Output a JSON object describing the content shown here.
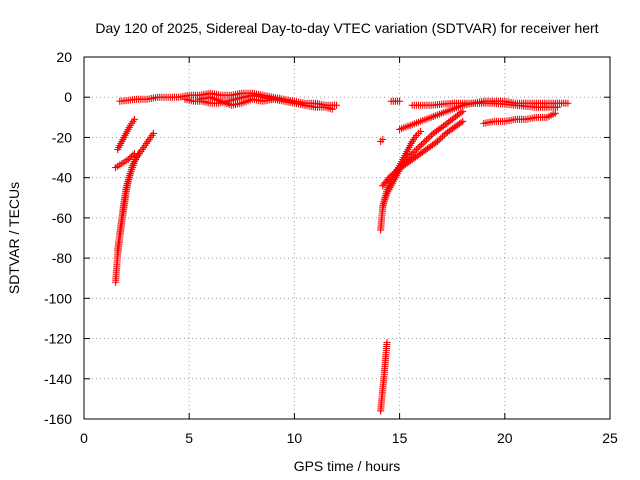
{
  "chart_data": {
    "type": "scatter",
    "title": "Day 120 of 2025, Sidereal Day-to-day VTEC variation (SDTVAR) for receiver hert",
    "xlabel": "GPS time / hours",
    "ylabel": "SDTVAR / TECUs",
    "xlim": [
      0,
      25
    ],
    "ylim": [
      -160,
      20
    ],
    "x_ticks": [
      "0",
      "5",
      "10",
      "15",
      "20",
      "25"
    ],
    "y_ticks": [
      "20",
      "0",
      "-20",
      "-40",
      "-60",
      "-80",
      "-100",
      "-120",
      "-140",
      "-160"
    ],
    "x_tick_values": [
      0,
      5,
      10,
      15,
      20,
      25
    ],
    "y_tick_values": [
      20,
      0,
      -20,
      -40,
      -60,
      -80,
      -100,
      -120,
      -140,
      -160
    ],
    "grid": true,
    "marker": "+",
    "color": "#ff0000",
    "series": [
      {
        "segments": [
          [
            [
              1.6,
              -26
            ],
            [
              1.8,
              -22
            ],
            [
              2.0,
              -18
            ],
            [
              2.2,
              -14
            ],
            [
              2.4,
              -11
            ]
          ],
          [
            [
              1.5,
              -35
            ],
            [
              1.8,
              -33
            ],
            [
              2.1,
              -31
            ],
            [
              2.4,
              -28
            ]
          ],
          [
            [
              1.5,
              -92
            ],
            [
              1.55,
              -85
            ],
            [
              1.6,
              -78
            ],
            [
              1.7,
              -70
            ],
            [
              1.8,
              -62
            ],
            [
              1.9,
              -55
            ],
            [
              2.0,
              -48
            ],
            [
              2.1,
              -42
            ],
            [
              2.2,
              -38
            ],
            [
              2.3,
              -34
            ],
            [
              2.5,
              -30
            ],
            [
              2.7,
              -27
            ],
            [
              2.9,
              -24
            ],
            [
              3.1,
              -21
            ],
            [
              3.3,
              -18
            ]
          ],
          [
            [
              1.6,
              -76
            ],
            [
              1.7,
              -68
            ],
            [
              1.8,
              -60
            ],
            [
              1.9,
              -52
            ],
            [
              2.0,
              -45
            ],
            [
              2.2,
              -38
            ],
            [
              2.4,
              -32
            ],
            [
              2.6,
              -28
            ]
          ],
          [
            [
              1.7,
              -2
            ],
            [
              2.5,
              -1
            ],
            [
              3.0,
              -1
            ],
            [
              3.5,
              0
            ],
            [
              4.0,
              0
            ],
            [
              4.5,
              0
            ],
            [
              5.0,
              1
            ],
            [
              5.5,
              1
            ],
            [
              6.0,
              2
            ],
            [
              6.5,
              1
            ],
            [
              7.0,
              1
            ],
            [
              7.5,
              2
            ],
            [
              8.0,
              2
            ],
            [
              8.5,
              1
            ],
            [
              9.0,
              0
            ],
            [
              9.5,
              -1
            ],
            [
              10.0,
              -2
            ],
            [
              10.5,
              -3
            ],
            [
              11.0,
              -3
            ],
            [
              11.5,
              -4
            ],
            [
              12.0,
              -4
            ]
          ],
          [
            [
              4.8,
              -1
            ],
            [
              5.2,
              -2
            ],
            [
              5.6,
              -2
            ],
            [
              6.0,
              -3
            ],
            [
              6.4,
              -3
            ],
            [
              6.8,
              -2
            ],
            [
              7.2,
              -1
            ],
            [
              7.6,
              0
            ],
            [
              8.0,
              1
            ],
            [
              8.5,
              0
            ],
            [
              9.0,
              -1
            ],
            [
              9.5,
              -2
            ],
            [
              10.0,
              -3
            ],
            [
              10.5,
              -4
            ],
            [
              11.0,
              -5
            ],
            [
              11.5,
              -5
            ],
            [
              11.8,
              -6
            ]
          ],
          [
            [
              5.5,
              -1
            ],
            [
              6.0,
              0
            ],
            [
              6.5,
              -2
            ],
            [
              7.0,
              -4
            ],
            [
              7.5,
              -3
            ],
            [
              8.0,
              -1
            ],
            [
              8.5,
              -2
            ],
            [
              9.0,
              -1
            ]
          ],
          [
            [
              14.1,
              -156
            ],
            [
              14.15,
              -150
            ],
            [
              14.2,
              -145
            ],
            [
              14.25,
              -140
            ],
            [
              14.3,
              -134
            ],
            [
              14.35,
              -128
            ],
            [
              14.4,
              -122
            ]
          ],
          [
            [
              14.1,
              -22
            ],
            [
              14.2,
              -21
            ]
          ],
          [
            [
              14.1,
              -66
            ],
            [
              14.15,
              -60
            ],
            [
              14.2,
              -55
            ],
            [
              14.3,
              -50
            ],
            [
              14.4,
              -46
            ],
            [
              14.6,
              -42
            ],
            [
              14.8,
              -38
            ],
            [
              15.0,
              -34
            ],
            [
              15.2,
              -30
            ],
            [
              15.4,
              -26
            ],
            [
              15.6,
              -22
            ],
            [
              15.8,
              -19
            ],
            [
              16.0,
              -17
            ]
          ],
          [
            [
              14.2,
              -44
            ],
            [
              14.5,
              -40
            ],
            [
              14.8,
              -37
            ],
            [
              15.2,
              -34
            ],
            [
              15.6,
              -31
            ],
            [
              16.0,
              -28
            ],
            [
              16.4,
              -25
            ],
            [
              16.8,
              -22
            ],
            [
              17.2,
              -18
            ],
            [
              17.6,
              -15
            ],
            [
              18.0,
              -12
            ]
          ],
          [
            [
              14.2,
              -54
            ],
            [
              14.4,
              -48
            ],
            [
              14.7,
              -42
            ],
            [
              15.0,
              -36
            ],
            [
              15.4,
              -30
            ],
            [
              15.8,
              -26
            ],
            [
              16.2,
              -22
            ],
            [
              16.6,
              -18
            ],
            [
              17.0,
              -15
            ],
            [
              17.5,
              -11
            ],
            [
              18.0,
              -7
            ]
          ],
          [
            [
              14.6,
              -2
            ],
            [
              15.0,
              -2
            ]
          ],
          [
            [
              15.0,
              -16
            ],
            [
              15.5,
              -14
            ],
            [
              16.0,
              -12
            ],
            [
              16.5,
              -10
            ],
            [
              17.0,
              -8
            ],
            [
              17.5,
              -6
            ],
            [
              18.0,
              -4
            ],
            [
              18.5,
              -3
            ],
            [
              19.0,
              -2
            ],
            [
              19.5,
              -2
            ],
            [
              20.0,
              -2
            ],
            [
              20.5,
              -3
            ],
            [
              21.0,
              -3
            ],
            [
              21.5,
              -3
            ],
            [
              22.0,
              -3
            ],
            [
              22.5,
              -3
            ],
            [
              23.0,
              -3
            ]
          ],
          [
            [
              15.6,
              -4
            ],
            [
              16.5,
              -4
            ],
            [
              17.5,
              -3
            ],
            [
              18.5,
              -3
            ],
            [
              19.5,
              -3
            ],
            [
              20.5,
              -4
            ],
            [
              21.5,
              -5
            ],
            [
              22.5,
              -5
            ]
          ],
          [
            [
              19.0,
              -13
            ],
            [
              19.5,
              -12
            ],
            [
              20.0,
              -12
            ],
            [
              20.5,
              -11
            ],
            [
              21.0,
              -11
            ],
            [
              21.5,
              -10
            ],
            [
              22.0,
              -10
            ],
            [
              22.4,
              -8
            ]
          ]
        ]
      }
    ]
  }
}
